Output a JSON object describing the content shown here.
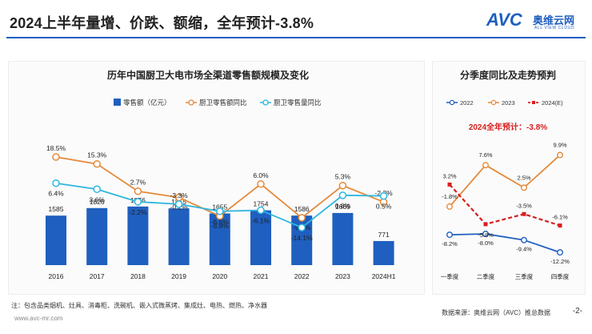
{
  "header": {
    "title": "2024上半年量增、价跌、额缩，全年预计-3.8%",
    "logo_mark": "AVC",
    "logo_cn": "奥维云网",
    "logo_en": "ALL VIEW CLOUD"
  },
  "footer": {
    "note": "注：包含品类烟机、灶具、消毒柜、洗碗机、嵌入式微蒸烤、集成灶、电热、燃热、净水器",
    "website": "www.avc-mr.com",
    "source": "数据来源：奥维云网（AVC）推总数据",
    "page": "-2-"
  },
  "colors": {
    "accent": "#1f5fbf",
    "bar": "#1f5fbf",
    "orange": "#e58a3c",
    "cyan": "#2eb6de",
    "red": "#d71f1f",
    "navy": "#1f5fbf"
  },
  "chart_data": [
    {
      "type": "bar",
      "title": "历年中国厨卫大电市场全渠道零售额规模及变化",
      "categories": [
        "2016",
        "2017",
        "2018",
        "2019",
        "2020",
        "2021",
        "2022",
        "2023",
        "2024H1"
      ],
      "legend": [
        "零售额（亿元）",
        "厨卫零售额同比",
        "厨卫零售量同比"
      ],
      "series": [
        {
          "name": "零售额（亿元）",
          "kind": "bar",
          "values": [
            1585,
            1826,
            1876,
            1815,
            1655,
            1754,
            1586,
            1669,
            771
          ]
        },
        {
          "name": "厨卫零售额同比",
          "kind": "line",
          "unit": "%",
          "values": [
            18.5,
            15.3,
            2.7,
            -0.2,
            -8.8,
            6.0,
            -9.6,
            5.3,
            -2.3
          ],
          "labels": [
            "18.5%",
            "15.3%",
            "2.7%",
            "-0.2%",
            "-8.8%",
            "6.0%",
            "-9.6%",
            "5.3%",
            "-2.3%"
          ]
        },
        {
          "name": "厨卫零售量同比",
          "kind": "line",
          "unit": "%",
          "values": [
            6.4,
            3.6,
            -2.2,
            -3.3,
            -6.6,
            -6.1,
            -14.1,
            0.8,
            0.5
          ],
          "labels": [
            "6.4%",
            "3.6%",
            "-2.2%",
            "-3.3%",
            "-6.6%",
            "-6.1%",
            "-14.1%",
            "0.8%",
            "0.5%"
          ]
        }
      ],
      "bar_labels": [
        "1585",
        "1826",
        "1876",
        "1815",
        "1655",
        "1754",
        "1586",
        "1669",
        "771"
      ]
    },
    {
      "type": "line",
      "title": "分季度同比及走势预判",
      "annotation": "2024全年预计：-3.8%",
      "categories": [
        "一季度",
        "二季度",
        "三季度",
        "四季度"
      ],
      "legend": [
        "2022",
        "2023",
        "2024(E)"
      ],
      "series": [
        {
          "name": "2022",
          "unit": "%",
          "values": [
            -8.2,
            -8.0,
            -9.4,
            -12.2
          ],
          "labels": [
            "-8.2%",
            "-8.0%",
            "-9.4%",
            "-12.2%"
          ]
        },
        {
          "name": "2023",
          "unit": "%",
          "values": [
            -1.8,
            7.6,
            2.5,
            9.9
          ],
          "labels": [
            "-1.8%",
            "7.6%",
            "2.5%",
            "9.9%"
          ]
        },
        {
          "name": "2024(E)",
          "unit": "%",
          "values": [
            3.2,
            -5.8,
            -3.5,
            -6.1
          ],
          "labels": [
            "3.2%",
            "-5.8%",
            "-3.5%",
            "-6.1%"
          ]
        }
      ]
    }
  ]
}
